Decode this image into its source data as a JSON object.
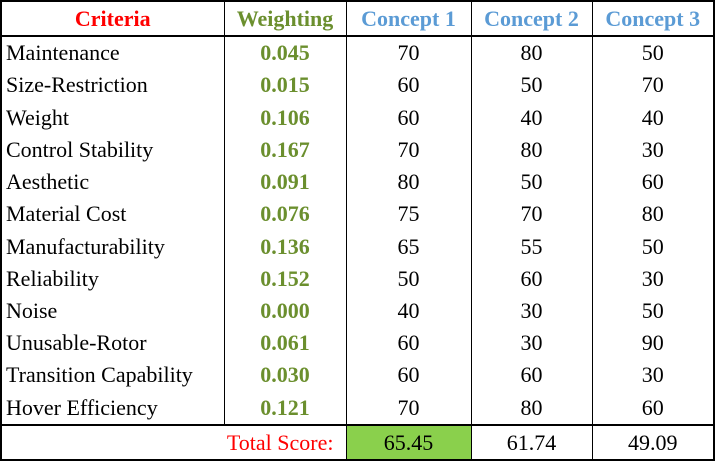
{
  "headers": {
    "criteria": "Criteria",
    "weighting": "Weighting",
    "concepts": [
      "Concept 1",
      "Concept 2",
      "Concept 3"
    ]
  },
  "rows": [
    {
      "criterion": "Maintenance",
      "weight": "0.045",
      "scores": [
        "70",
        "80",
        "50"
      ]
    },
    {
      "criterion": "Size-Restriction",
      "weight": "0.015",
      "scores": [
        "60",
        "50",
        "70"
      ]
    },
    {
      "criterion": "Weight",
      "weight": "0.106",
      "scores": [
        "60",
        "40",
        "40"
      ]
    },
    {
      "criterion": "Control Stability",
      "weight": "0.167",
      "scores": [
        "70",
        "80",
        "30"
      ]
    },
    {
      "criterion": "Aesthetic",
      "weight": "0.091",
      "scores": [
        "80",
        "50",
        "60"
      ]
    },
    {
      "criterion": "Material Cost",
      "weight": "0.076",
      "scores": [
        "75",
        "70",
        "80"
      ]
    },
    {
      "criterion": "Manufacturability",
      "weight": "0.136",
      "scores": [
        "65",
        "55",
        "50"
      ]
    },
    {
      "criterion": "Reliability",
      "weight": "0.152",
      "scores": [
        "50",
        "60",
        "30"
      ]
    },
    {
      "criterion": "Noise",
      "weight": "0.000",
      "scores": [
        "40",
        "30",
        "50"
      ]
    },
    {
      "criterion": "Unusable-Rotor",
      "weight": "0.061",
      "scores": [
        "60",
        "30",
        "90"
      ]
    },
    {
      "criterion": "Transition Capability",
      "weight": "0.030",
      "scores": [
        "60",
        "60",
        "30"
      ]
    },
    {
      "criterion": "Hover Efficiency",
      "weight": "0.121",
      "scores": [
        "70",
        "80",
        "60"
      ]
    }
  ],
  "total": {
    "label": "Total Score:",
    "scores": [
      "65.45",
      "61.74",
      "49.09"
    ]
  },
  "colors": {
    "criteria_header": "#ff0000",
    "weighting": "#6b8f2e",
    "concept_header": "#5b9bd5",
    "best_score_highlight": "#8ad04c"
  }
}
